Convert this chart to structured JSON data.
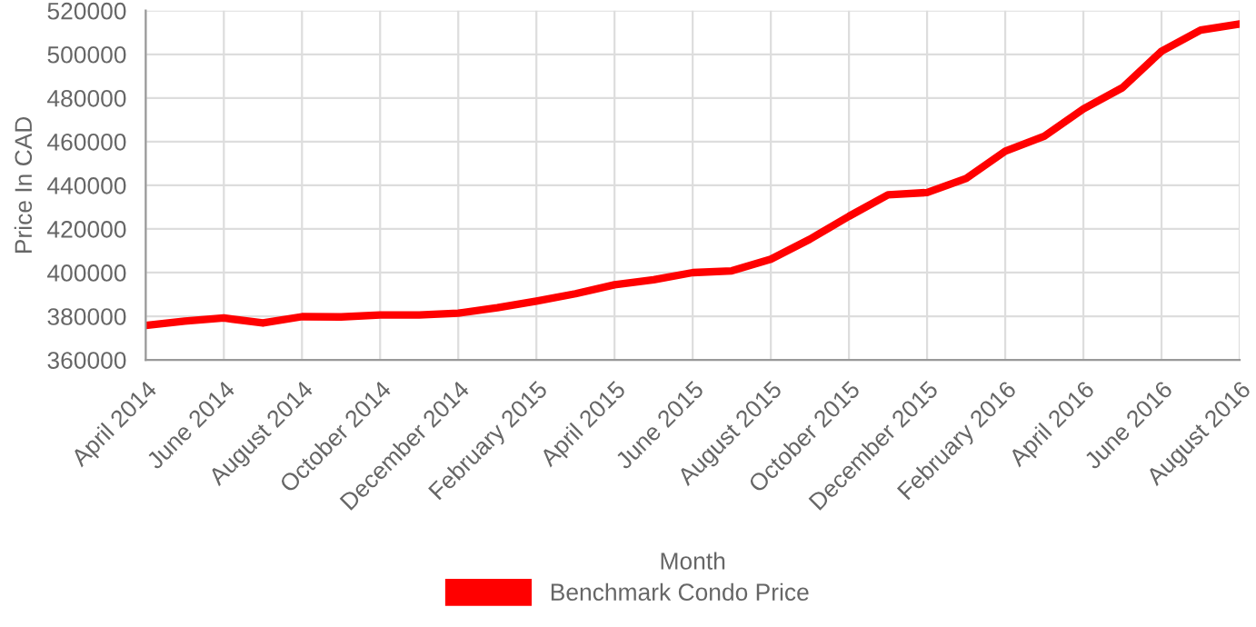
{
  "chart_data": {
    "type": "line",
    "xlabel": "Month",
    "ylabel": "Price In CAD",
    "categories": [
      "April 2014",
      null,
      "June 2014",
      null,
      "August 2014",
      null,
      "October 2014",
      null,
      "December 2014",
      null,
      "February 2015",
      null,
      "April 2015",
      null,
      "June 2015",
      null,
      "August 2015",
      null,
      "October 2015",
      null,
      "December 2015",
      null,
      "February 2016",
      null,
      "April 2016",
      null,
      "June 2016",
      null,
      "August 2016"
    ],
    "series": [
      {
        "name": "Benchmark Condo Price",
        "color": "#ff0000",
        "values": [
          375800,
          377800,
          379200,
          376900,
          379800,
          379700,
          380600,
          380600,
          381400,
          383900,
          386900,
          390300,
          394400,
          396700,
          400000,
          400800,
          406100,
          415300,
          425800,
          435600,
          436700,
          443100,
          455600,
          462500,
          475000,
          484700,
          501400,
          511100,
          513900
        ]
      }
    ],
    "ylim": [
      360000,
      520000
    ],
    "yticks": [
      360000,
      380000,
      400000,
      420000,
      440000,
      460000,
      480000,
      500000,
      520000
    ],
    "grid": true,
    "legend": "bottom",
    "marker": "none",
    "line_style": "solid"
  }
}
